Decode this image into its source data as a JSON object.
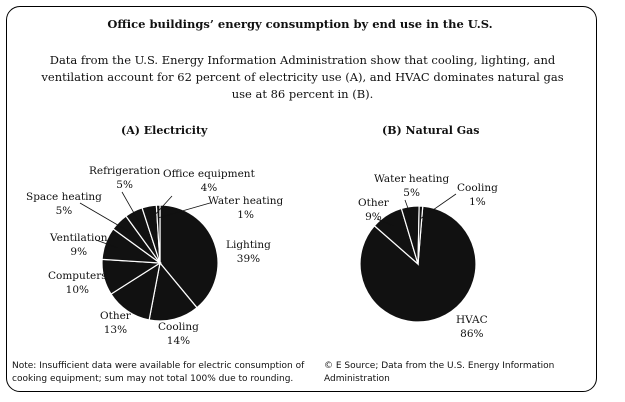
{
  "figure": {
    "title": "Office buildings’ energy consumption by end use in the U.S.",
    "subtitle": "Data from the U.S. Energy Information Administration show that cooling, lighting, and ventilation account for 62 percent of electricity use (A), and HVAC dominates natural gas use at 86 percent in (B).",
    "note": "Note: Insufficient data were available for electric consumption of cooking equipment; sum may not total 100% due to rounding.",
    "source": "© E Source; Data from the U.S. Energy Information Administration"
  },
  "colors": {
    "dark": "#111111",
    "light": "#ffffff"
  },
  "chart_data": [
    {
      "type": "pie",
      "title": "(A) Electricity",
      "slices": [
        {
          "label": "Lighting",
          "value": 39,
          "value_label": "39%"
        },
        {
          "label": "Cooling",
          "value": 14,
          "value_label": "14%"
        },
        {
          "label": "Other",
          "value": 13,
          "value_label": "13%"
        },
        {
          "label": "Computers",
          "value": 10,
          "value_label": "10%"
        },
        {
          "label": "Ventilation",
          "value": 9,
          "value_label": "9%"
        },
        {
          "label": "Space heating",
          "value": 5,
          "value_label": "5%"
        },
        {
          "label": "Refrigeration",
          "value": 5,
          "value_label": "5%"
        },
        {
          "label": "Office equipment",
          "value": 4,
          "value_label": "4%"
        },
        {
          "label": "Water heating",
          "value": 1,
          "value_label": "1%"
        }
      ]
    },
    {
      "type": "pie",
      "title": "(B) Natural Gas",
      "slices": [
        {
          "label": "HVAC",
          "value": 86,
          "value_label": "86%"
        },
        {
          "label": "Other",
          "value": 9,
          "value_label": "9%"
        },
        {
          "label": "Water heating",
          "value": 5,
          "value_label": "5%"
        },
        {
          "label": "Cooling",
          "value": 1,
          "value_label": "1%"
        }
      ]
    }
  ]
}
